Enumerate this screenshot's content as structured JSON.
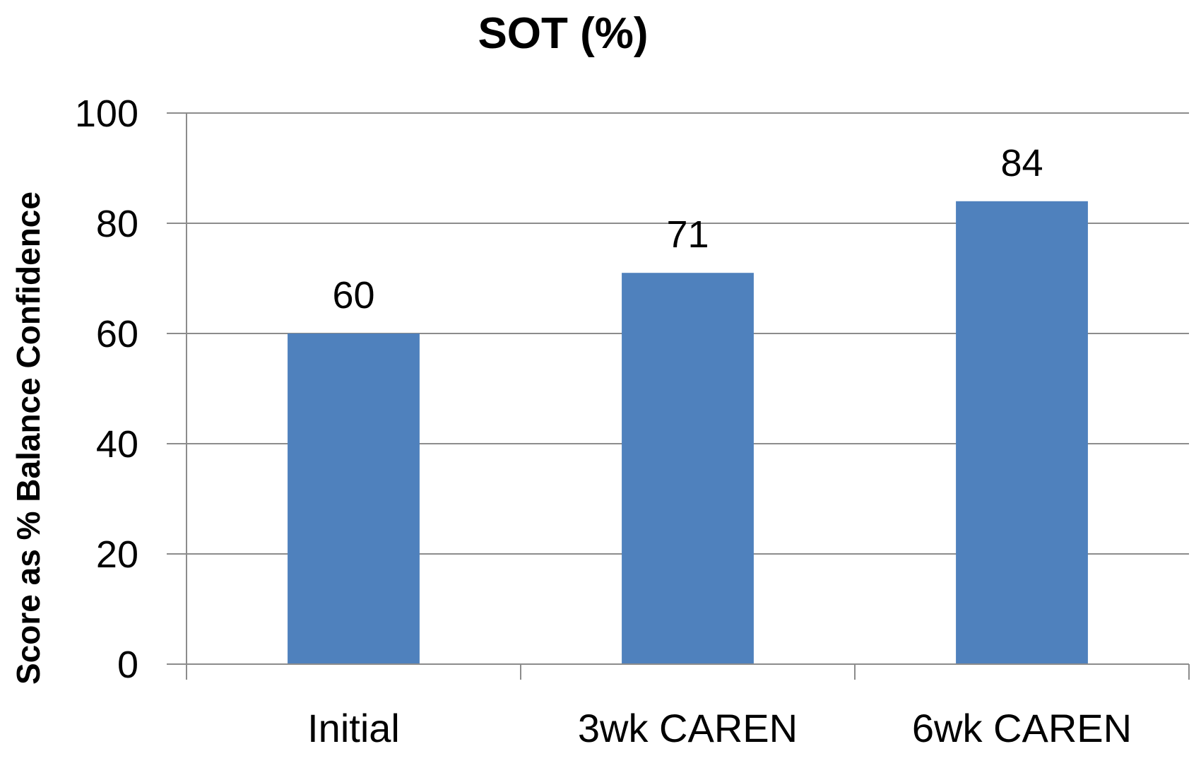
{
  "chart_data": {
    "type": "bar",
    "title": "SOT (%)",
    "xlabel": "",
    "ylabel": "Score as % Balance Confidence",
    "categories": [
      "Initial",
      "3wk CAREN",
      "6wk CAREN"
    ],
    "values": [
      60,
      71,
      84
    ],
    "data_labels": [
      "60",
      "71",
      "84"
    ],
    "ylim": [
      0,
      100
    ],
    "yticks": [
      0,
      20,
      40,
      60,
      80,
      100
    ],
    "ytick_labels": [
      "0",
      "20",
      "40",
      "60",
      "80",
      "100"
    ],
    "grid": true,
    "legend": "none",
    "colors": {
      "bar": "#4F81BD",
      "grid": "#8C8C8C",
      "axis": "#8C8C8C",
      "text": "#000000"
    }
  }
}
